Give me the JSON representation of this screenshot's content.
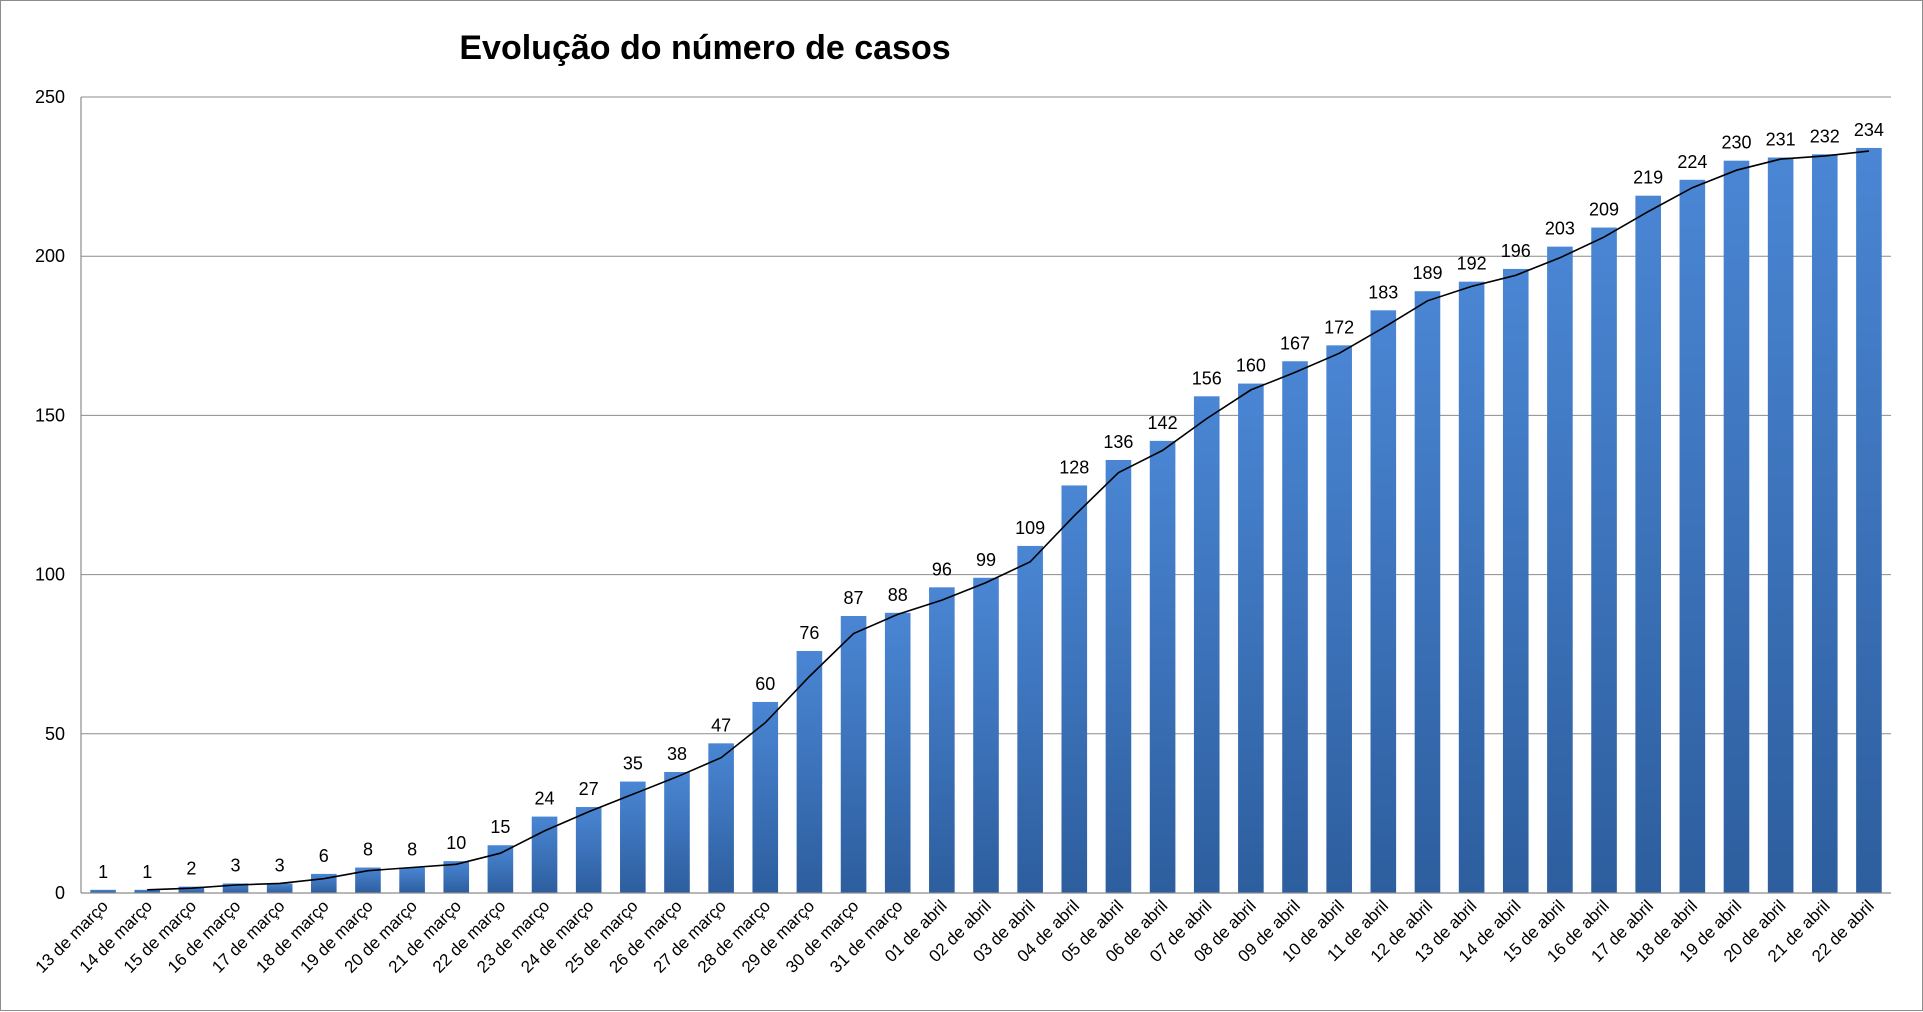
{
  "chart_data": {
    "type": "bar",
    "title": "Evolução do número de casos",
    "xlabel": "",
    "ylabel": "",
    "ylim": [
      0,
      250
    ],
    "yticks": [
      0,
      50,
      100,
      150,
      200,
      250
    ],
    "grid": true,
    "legend": "none",
    "categories": [
      "13 de março",
      "14 de março",
      "15 de março",
      "16 de março",
      "17 de março",
      "18 de março",
      "19 de março",
      "20 de março",
      "21 de março",
      "22 de março",
      "23 de março",
      "24 de março",
      "25 de março",
      "26 de março",
      "27 de março",
      "28 de março",
      "29 de março",
      "30 de março",
      "31 de março",
      "01 de abril",
      "02 de abril",
      "03 de abril",
      "04 de abril",
      "05 de abril",
      "06 de abril",
      "07 de abril",
      "08 de abril",
      "09 de abril",
      "10 de abril",
      "11 de abril",
      "12 de abril",
      "13 de abril",
      "14 de abril",
      "15 de abril",
      "16 de abril",
      "17 de abril",
      "18 de abril",
      "19 de abril",
      "20 de abril",
      "21 de abril",
      "22 de abril"
    ],
    "values": [
      1,
      1,
      2,
      3,
      3,
      6,
      8,
      8,
      10,
      15,
      24,
      27,
      35,
      38,
      47,
      60,
      76,
      87,
      88,
      96,
      99,
      109,
      128,
      136,
      142,
      156,
      160,
      167,
      172,
      183,
      189,
      192,
      196,
      203,
      209,
      219,
      224,
      230,
      231,
      232,
      234
    ],
    "trendline": true,
    "colors": {
      "bar_light": "#4a86d4",
      "bar_dark": "#2d5e9e",
      "trend": "#000000",
      "grid": "#8c8c8c"
    }
  }
}
